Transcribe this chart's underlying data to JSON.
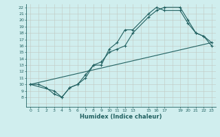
{
  "xlabel": "Humidex (Indice chaleur)",
  "bg_color": "#d0eeee",
  "grid_color": "#b8d0d0",
  "grid_color2": "#c8b8b8",
  "line_color": "#206060",
  "marker_color": "#206060",
  "xlim": [
    -0.5,
    23.5
  ],
  "ylim": [
    6.5,
    22.5
  ],
  "line1_x": [
    0,
    1,
    2,
    3,
    4,
    5,
    6,
    7,
    8,
    9,
    10,
    11,
    12,
    13,
    15,
    16,
    17,
    19,
    20,
    21,
    22,
    23
  ],
  "line1_y": [
    10,
    10,
    9.5,
    8.5,
    8,
    9.5,
    10,
    11,
    13,
    13.5,
    15,
    15.5,
    16,
    18,
    20.5,
    21.5,
    22,
    22,
    20,
    18,
    17.5,
    16.5
  ],
  "line2_x": [
    0,
    3,
    4,
    5,
    6,
    7,
    8,
    9,
    10,
    11,
    12,
    13,
    15,
    16,
    17,
    19,
    20,
    21,
    22,
    23
  ],
  "line2_y": [
    10,
    9,
    8,
    9.5,
    10,
    11.5,
    13,
    13,
    15.5,
    16.5,
    18.5,
    18.5,
    21,
    22,
    21.5,
    21.5,
    19.5,
    18,
    17.5,
    16
  ],
  "line3_x": [
    0,
    23
  ],
  "line3_y": [
    10,
    16.5
  ],
  "xtick_pos": [
    0,
    1,
    2,
    3,
    4,
    5,
    6,
    7,
    8,
    9,
    10,
    11,
    12,
    13,
    15,
    16,
    17,
    19,
    20,
    21,
    22,
    23
  ],
  "xtick_labels": [
    "0",
    "1",
    "2",
    "3",
    "4",
    "5",
    "6",
    "7",
    "8",
    "9",
    "10",
    "11",
    "12",
    "13",
    "15",
    "16",
    "17",
    "19",
    "20",
    "21",
    "22",
    "23"
  ],
  "ytick_pos": [
    8,
    9,
    10,
    11,
    12,
    13,
    14,
    15,
    16,
    17,
    18,
    19,
    20,
    21,
    22
  ],
  "ytick_labels": [
    "8",
    "9",
    "10",
    "11",
    "12",
    "13",
    "14",
    "15",
    "16",
    "17",
    "18",
    "19",
    "20",
    "21",
    "22"
  ]
}
